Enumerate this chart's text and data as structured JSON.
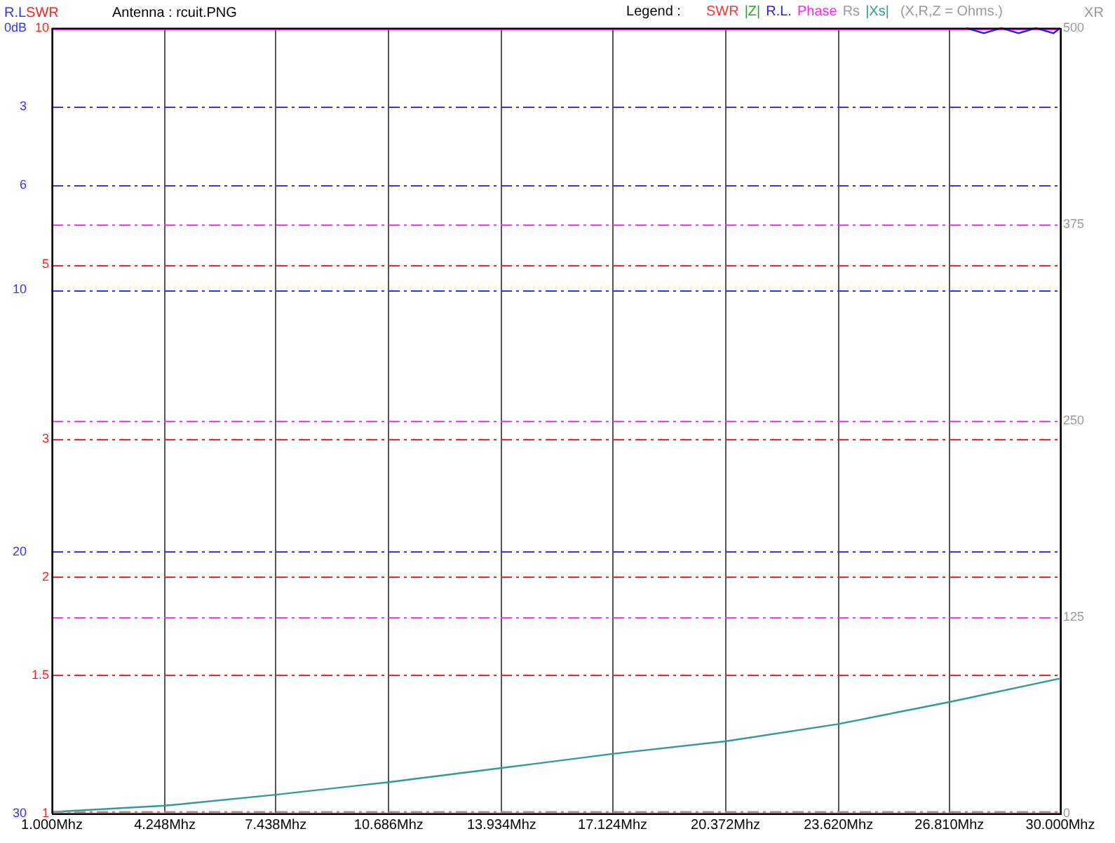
{
  "chart_data": {
    "type": "line",
    "title": "Antenna : rcuit.PNG",
    "legend_title": "Legend :",
    "ylabel": "SWR",
    "y2label": "R.L",
    "y3label": "XR",
    "annotations": [
      "(X,R,Z = Ohms.)"
    ],
    "x": [
      1,
      4.248,
      7.438,
      10.686,
      13.934,
      17.124,
      20.372,
      23.62,
      26.81,
      30
    ],
    "xlim": [
      1,
      30
    ],
    "xticks": [
      {
        "value": 1,
        "label": "1.000Mhz"
      },
      {
        "value": 4.248,
        "label": "4.248Mhz"
      },
      {
        "value": 7.438,
        "label": "7.438Mhz"
      },
      {
        "value": 10.686,
        "label": "10.686Mhz"
      },
      {
        "value": 13.934,
        "label": "13.934Mhz"
      },
      {
        "value": 17.124,
        "label": "17.124Mhz"
      },
      {
        "value": 20.372,
        "label": "20.372Mhz"
      },
      {
        "value": 23.62,
        "label": "23.620Mhz"
      },
      {
        "value": 26.81,
        "label": "26.810Mhz"
      },
      {
        "value": 30,
        "label": "30.000Mhz"
      }
    ],
    "ylim": [
      1,
      10
    ],
    "yticks": [
      1,
      1.5,
      2,
      3,
      5,
      10
    ],
    "log": "y",
    "y2lim": [
      30,
      0
    ],
    "y2ticks": [
      {
        "value": 0,
        "label": "0dB"
      },
      3,
      6,
      10,
      20,
      30
    ],
    "y3lim": [
      0,
      500
    ],
    "y3ticks": [
      0,
      125,
      250,
      375,
      500
    ],
    "grid": true,
    "legend": "top right",
    "marker": "none",
    "series": [
      {
        "name": "SWR",
        "color": "#ff3333",
        "axis": "y",
        "values": [
          1,
          1,
          1,
          1,
          1,
          1,
          1,
          1,
          1,
          1
        ]
      },
      {
        "name": "|Z|",
        "color": "#22aa22",
        "axis": "y3",
        "values": [
          null,
          null,
          null,
          null,
          null,
          null,
          null,
          null,
          null,
          null
        ]
      },
      {
        "name": "R.L.",
        "color": "#2222ee",
        "axis": "y2",
        "x": [
          27.3,
          27.8,
          28.3,
          28.8,
          29.3,
          29.8,
          30
        ],
        "values": [
          0,
          0.2,
          0,
          0.2,
          0,
          0.2,
          0
        ]
      },
      {
        "name": "Phase",
        "color": "#ff22ff",
        "axis": "y3",
        "values": [
          null,
          null,
          null,
          null,
          null,
          null,
          null,
          null,
          null,
          null
        ]
      },
      {
        "name": "Rs",
        "color": "#999999",
        "axis": "y3",
        "line_style": "dashed",
        "values": [
          1,
          1,
          1,
          1,
          1,
          1,
          1,
          1,
          1,
          1
        ]
      },
      {
        "name": "|Xs|",
        "color": "#339999",
        "axis": "y3",
        "values": [
          1,
          5,
          12,
          20,
          29,
          38,
          46,
          57,
          71,
          86
        ]
      }
    ]
  }
}
